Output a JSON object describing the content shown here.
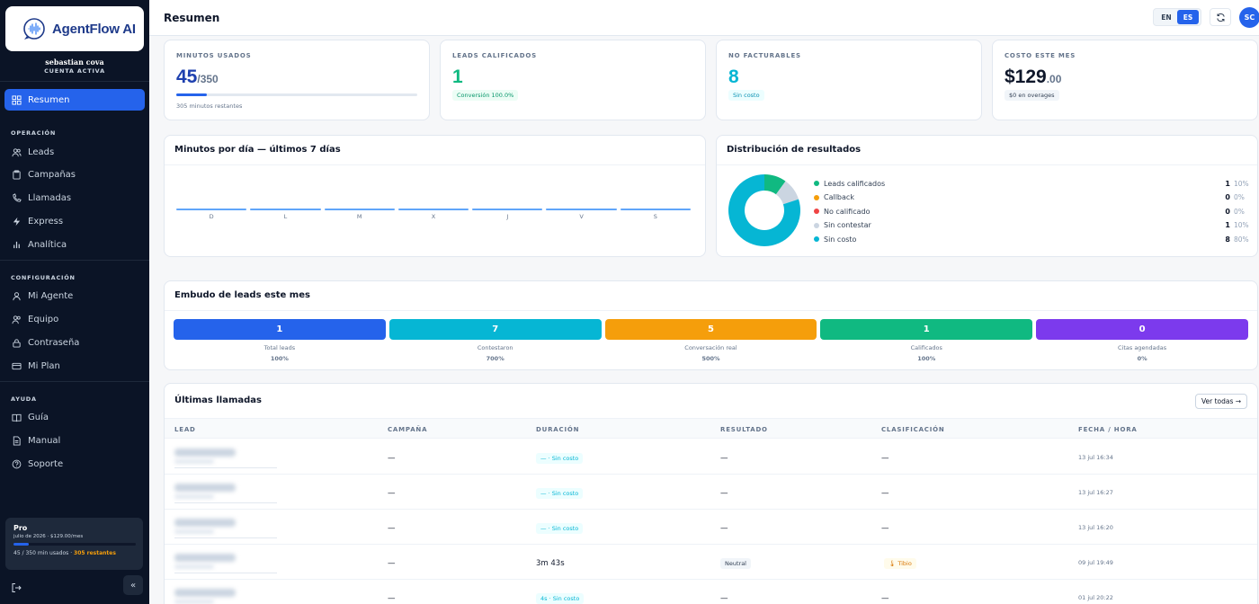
{
  "app": {
    "name": "AgentFlow AI"
  },
  "user": {
    "name": "sebastian cova",
    "status": "CUENTA ACTIVA",
    "initials": "SC"
  },
  "sidebar": {
    "active": {
      "label": "Resumen",
      "icon": "grid-icon"
    },
    "sections": [
      {
        "title": "OPERACIÓN",
        "items": [
          {
            "label": "Leads",
            "icon": "users-icon"
          },
          {
            "label": "Campañas",
            "icon": "clipboard-icon"
          },
          {
            "label": "Llamadas",
            "icon": "phone-icon"
          },
          {
            "label": "Express",
            "icon": "bolt-icon"
          },
          {
            "label": "Analítica",
            "icon": "bar-chart-icon"
          }
        ]
      },
      {
        "title": "CONFIGURACIÓN",
        "items": [
          {
            "label": "Mi Agente",
            "icon": "user-icon"
          },
          {
            "label": "Equipo",
            "icon": "team-icon"
          },
          {
            "label": "Contraseña",
            "icon": "lock-icon"
          },
          {
            "label": "Mi Plan",
            "icon": "credit-card-icon"
          }
        ]
      },
      {
        "title": "AYUDA",
        "items": [
          {
            "label": "Guía",
            "icon": "book-icon"
          },
          {
            "label": "Manual",
            "icon": "file-icon"
          },
          {
            "label": "Soporte",
            "icon": "help-icon"
          }
        ]
      }
    ],
    "plan": {
      "name": "Pro",
      "period": "julio de 2026 · $129.00/mes",
      "usage": "45 / 350 min usados",
      "separator": "·",
      "remaining": "305 restantes",
      "used_fraction": 0.1286
    },
    "collapse_glyph": "«"
  },
  "header": {
    "title": "Resumen",
    "languages": [
      "EN",
      "ES"
    ],
    "active_language": "ES"
  },
  "kpis": {
    "minutes": {
      "label": "MINUTOS USADOS",
      "value": "45",
      "total": "/350",
      "note": "305 minutos restantes",
      "used_fraction": 0.1286
    },
    "qualified": {
      "label": "LEADS CALIFICADOS",
      "value": "1",
      "chip": "Conversión 100.0%"
    },
    "non_billable": {
      "label": "NO FACTURABLES",
      "value": "8",
      "chip": "Sin costo"
    },
    "cost": {
      "label": "COSTO ESTE MES",
      "value": "$129",
      "cents": ".00",
      "chip": "$0 en overages"
    }
  },
  "minutes_chart": {
    "title": "Minutos por día — últimos 7 días",
    "chart_data": {
      "type": "bar",
      "categories": [
        "D",
        "L",
        "M",
        "X",
        "J",
        "V",
        "S"
      ],
      "values": [
        0,
        0,
        0,
        0,
        0,
        0,
        0
      ]
    }
  },
  "distribution": {
    "title": "Distribución de resultados",
    "chart_data": {
      "type": "pie",
      "categories": [
        "Leads calificados",
        "Callback",
        "No calificado",
        "Sin contestar",
        "Sin costo"
      ],
      "values": [
        1,
        0,
        0,
        1,
        8
      ],
      "percents": [
        "10%",
        "0%",
        "0%",
        "10%",
        "80%"
      ],
      "colors": [
        "#10b981",
        "#f59e0b",
        "#ef4444",
        "#cbd5e1",
        "#06b6d4"
      ]
    }
  },
  "funnel": {
    "title": "Embudo de leads este mes",
    "stages": [
      {
        "label": "Total leads",
        "value": "1",
        "pct": "100%",
        "color": "#2563eb"
      },
      {
        "label": "Contestaron",
        "value": "7",
        "pct": "700%",
        "color": "#06b6d4"
      },
      {
        "label": "Conversación real",
        "value": "5",
        "pct": "500%",
        "color": "#f59e0b"
      },
      {
        "label": "Calificados",
        "value": "1",
        "pct": "100%",
        "color": "#10b981"
      },
      {
        "label": "Citas agendadas",
        "value": "0",
        "pct": "0%",
        "color": "#7c3aed"
      }
    ]
  },
  "calls": {
    "title": "Últimas llamadas",
    "view_all": "Ver todas →",
    "columns": [
      "LEAD",
      "CAMPAÑA",
      "DURACIÓN",
      "RESULTADO",
      "CLASIFICACIÓN",
      "FECHA / HORA"
    ],
    "rows": [
      {
        "campaign": "—",
        "duration": "— · Sin costo",
        "result": "—",
        "classification": "—",
        "date": "13 jul 16:34"
      },
      {
        "campaign": "—",
        "duration": "— · Sin costo",
        "result": "—",
        "classification": "—",
        "date": "13 jul 16:27"
      },
      {
        "campaign": "—",
        "duration": "— · Sin costo",
        "result": "—",
        "classification": "—",
        "date": "13 jul 16:20"
      },
      {
        "campaign": "—",
        "duration": "3m 43s",
        "result": "Neutral",
        "classification": "🌡 Tibio",
        "date": "09 jul 19:49"
      },
      {
        "campaign": "—",
        "duration": "4s · Sin costo",
        "result": "—",
        "classification": "—",
        "date": "01 jul 20:22"
      }
    ]
  }
}
